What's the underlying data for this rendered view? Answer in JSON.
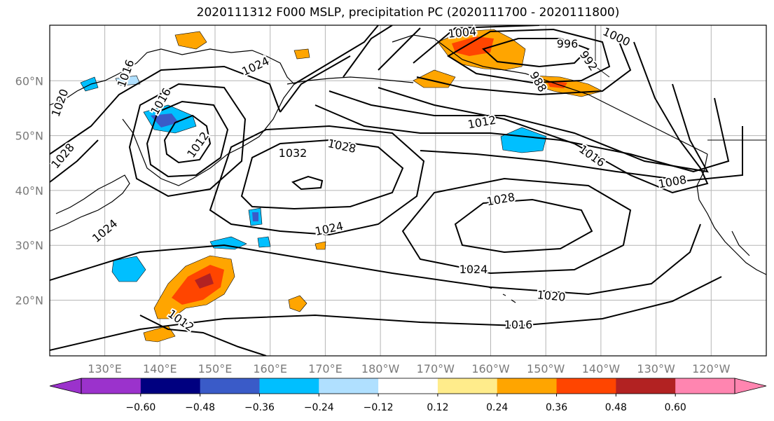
{
  "title": "2020111312 F000 MSLP, precipitation PC (2020111700 - 2020111800)",
  "map": {
    "lat_labels": [
      {
        "text": "60°N",
        "lat": 60
      },
      {
        "text": "50°N",
        "lat": 50
      },
      {
        "text": "40°N",
        "lat": 40
      },
      {
        "text": "30°N",
        "lat": 30
      },
      {
        "text": "20°N",
        "lat": 20
      }
    ],
    "lon_labels": [
      {
        "text": "130°E",
        "lon": 130
      },
      {
        "text": "140°E",
        "lon": 140
      },
      {
        "text": "150°E",
        "lon": 150
      },
      {
        "text": "160°E",
        "lon": 160
      },
      {
        "text": "170°E",
        "lon": 170
      },
      {
        "text": "180°W",
        "lon": 180
      },
      {
        "text": "170°W",
        "lon": 190
      },
      {
        "text": "160°W",
        "lon": 200
      },
      {
        "text": "150°W",
        "lon": 210
      },
      {
        "text": "140°W",
        "lon": 220
      },
      {
        "text": "130°W",
        "lon": 230
      },
      {
        "text": "120°W",
        "lon": 240
      }
    ],
    "isobar_labels": [
      "1004",
      "996",
      "1000",
      "992",
      "988",
      "1016",
      "1024",
      "1020",
      "1016",
      "1012",
      "1032",
      "1028",
      "1012",
      "1016",
      "1008",
      "1028",
      "1024",
      "1024",
      "1020",
      "1016",
      "1012",
      "1024",
      "1028"
    ]
  },
  "colorbar": {
    "colors": [
      "#9b32cc",
      "#000080",
      "#3a5bc8",
      "#00bfff",
      "#b0e0ff",
      "#ffffff",
      "#ffec8b",
      "#ffa500",
      "#ff4500",
      "#b22222",
      "#ff85b0"
    ],
    "tick_labels": [
      "−0.60",
      "−0.48",
      "−0.36",
      "−0.24",
      "−0.12",
      "0.12",
      "0.24",
      "0.36",
      "0.48",
      "0.60"
    ]
  }
}
